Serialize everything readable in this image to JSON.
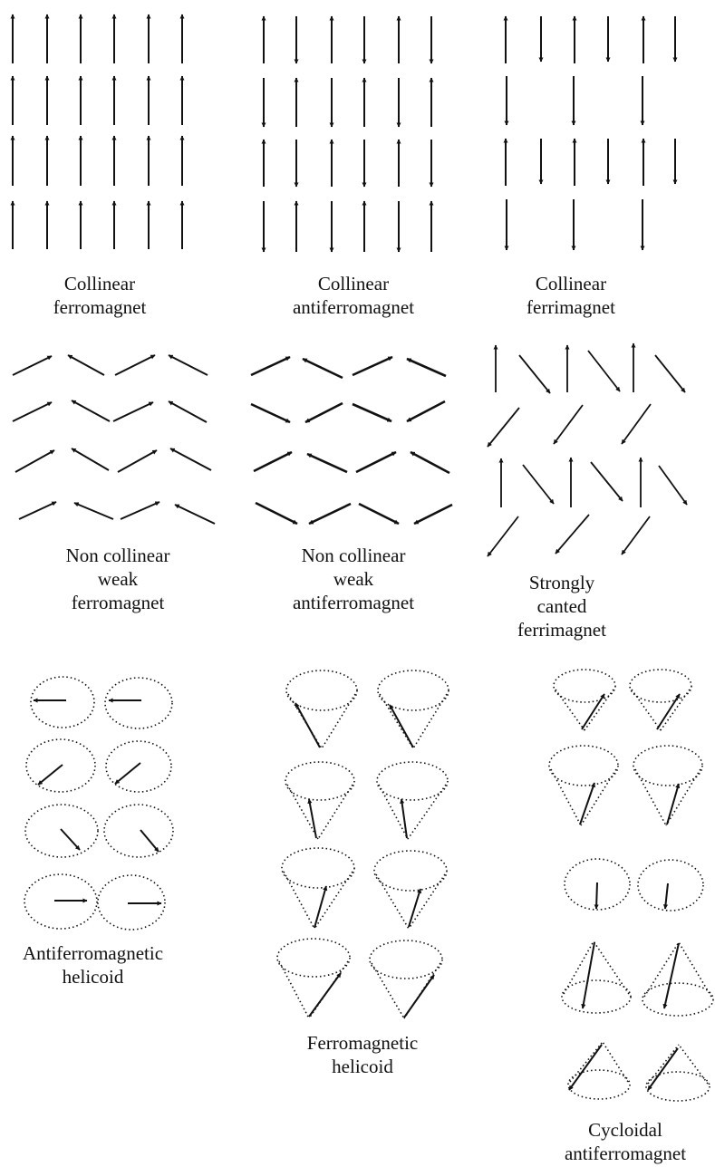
{
  "figure": {
    "background": "#ffffff",
    "ink": "#111111"
  },
  "panels": [
    {
      "id": "collinear-ferromagnet",
      "label": [
        "Collinear",
        "ferromagnet"
      ]
    },
    {
      "id": "collinear-antiferromagnet",
      "label": [
        "Collinear",
        "antiferromagnet"
      ]
    },
    {
      "id": "collinear-ferrimagnet",
      "label": [
        "Collinear",
        "ferrimagnet"
      ]
    },
    {
      "id": "noncollinear-weak-ferromagnet",
      "label": [
        "Non collinear",
        "weak",
        "ferromagnet"
      ]
    },
    {
      "id": "noncollinear-weak-antiferromagnet",
      "label": [
        "Non collinear",
        "weak",
        "antiferromagnet"
      ]
    },
    {
      "id": "strongly-canted-ferrimagnet",
      "label": [
        "Strongly",
        "canted",
        "ferrimagnet"
      ]
    },
    {
      "id": "antiferromagnetic-helicoid",
      "label": [
        "Antiferromagnetic",
        "helicoid"
      ]
    },
    {
      "id": "ferromagnetic-helicoid",
      "label": [
        "Ferromagnetic",
        "helicoid"
      ]
    },
    {
      "id": "cycloidal-antiferromagnet",
      "label": [
        "Cycloidal",
        "antiferromagnet"
      ]
    }
  ]
}
